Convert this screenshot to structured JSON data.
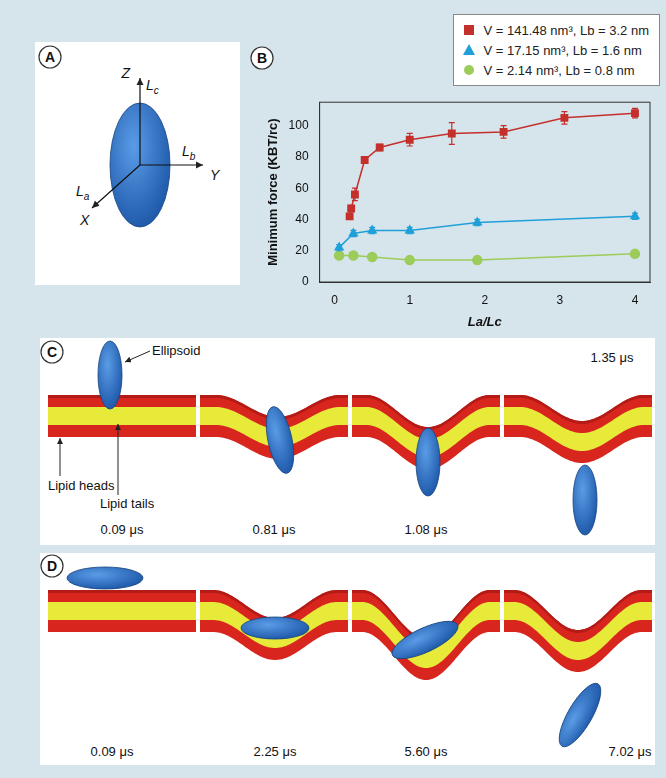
{
  "panel_a": {
    "label": "A",
    "axis_labels": {
      "x": "X",
      "y": "Y",
      "z": "Z"
    },
    "length_labels": {
      "x": "La",
      "y": "Lb",
      "z": "Lc"
    }
  },
  "panel_b": {
    "label": "B"
  },
  "chart_data": {
    "type": "line",
    "x_label": "La/Lc",
    "y_label": "Minimum force (KBT/rc)",
    "xlim": [
      -0.2,
      4.2
    ],
    "xticks": [
      0,
      1,
      2,
      3,
      4
    ],
    "ylim": [
      0,
      115
    ],
    "yticks": [
      0,
      20,
      40,
      60,
      80,
      100
    ],
    "grid": false,
    "legend": "top-right",
    "series": [
      {
        "name": "V = 141.48 nm³, Lb = 3.2 nm",
        "color": "#c4302b",
        "marker": "square",
        "x": [
          0.2,
          0.22,
          0.27,
          0.4,
          0.6,
          1.0,
          1.56,
          2.25,
          3.06,
          4.0
        ],
        "values": [
          42,
          47,
          56,
          78,
          86,
          91,
          95,
          96,
          105,
          108
        ],
        "errors": [
          1,
          2,
          4,
          2,
          2,
          4,
          7,
          4,
          4,
          3
        ]
      },
      {
        "name": "V = 17.15 nm³, Lb = 1.6 nm",
        "color": "#1fa0d8",
        "marker": "triangle",
        "x": [
          0.06,
          0.25,
          0.5,
          1.0,
          1.9,
          4.0
        ],
        "values": [
          22,
          31,
          33,
          33,
          38,
          42
        ],
        "errors": [
          2,
          2,
          2,
          2,
          2,
          2
        ]
      },
      {
        "name": "V = 2.14 nm³, Lb = 0.8 nm",
        "color": "#9ccc5a",
        "marker": "circle",
        "x": [
          0.06,
          0.25,
          0.5,
          1.0,
          1.9,
          4.0
        ],
        "values": [
          17,
          17,
          16,
          14,
          14,
          18
        ],
        "errors": [
          1,
          1,
          1,
          1,
          1,
          1
        ]
      }
    ]
  },
  "panel_c": {
    "label": "C",
    "annotations": [
      "Ellipsoid",
      "Lipid heads",
      "Lipid tails"
    ],
    "times": [
      "0.09 μs",
      "0.81 μs",
      "1.08 μs",
      "1.35 μs"
    ]
  },
  "panel_d": {
    "label": "D",
    "times": [
      "0.09 μs",
      "2.25 μs",
      "5.60 μs",
      "7.02 μs"
    ]
  }
}
